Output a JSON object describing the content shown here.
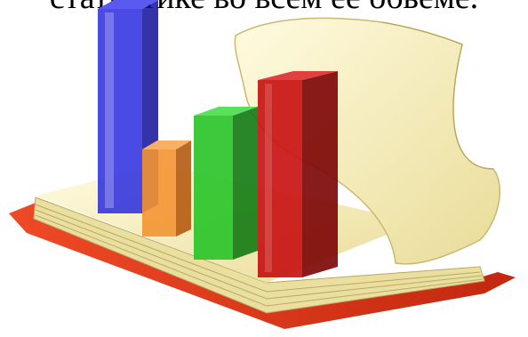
{
  "caption": "статистике во всем ее обьеме.",
  "illustration": {
    "subject": "book-with-3d-bar-chart",
    "colors": {
      "cover": "#e23a1e",
      "pages": "#f6efbf",
      "bar_blue": "#1f1fd0",
      "bar_orange": "#f08a2c",
      "bar_green": "#22c022",
      "bar_red": "#c01010"
    }
  }
}
